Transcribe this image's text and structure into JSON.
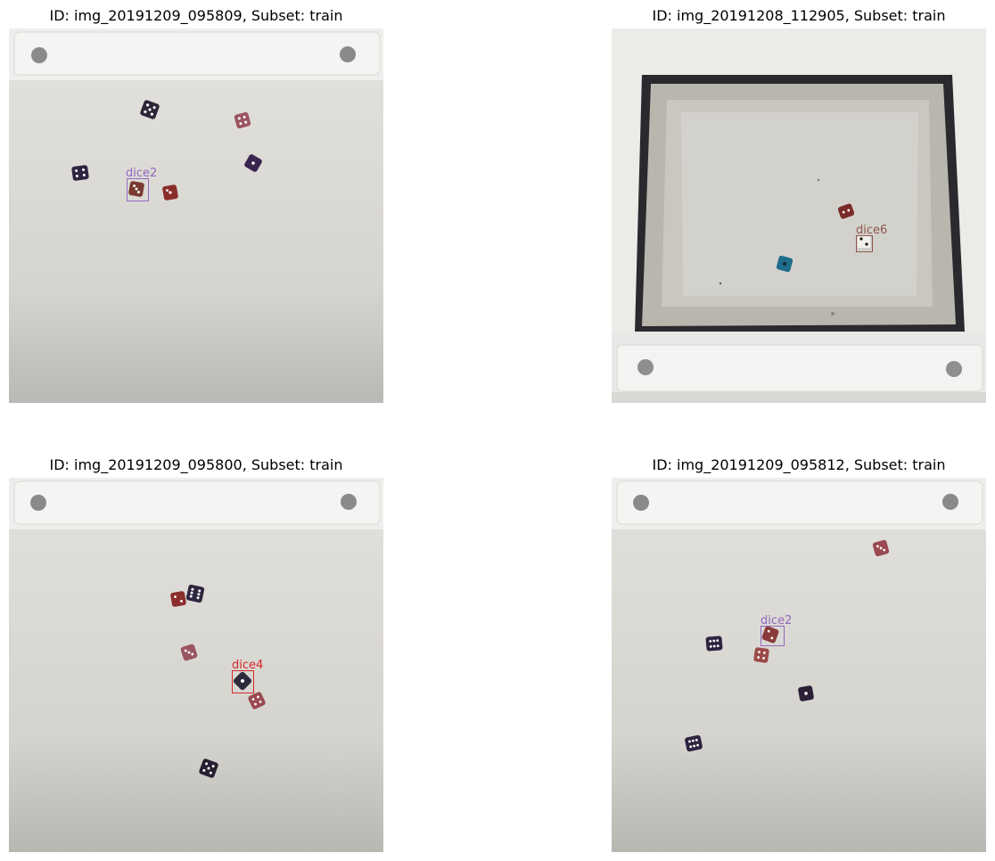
{
  "panels": [
    {
      "title": "ID: img_20191209_095809, Subset: train",
      "annotation": {
        "label": "dice2",
        "color": "#9467bd"
      }
    },
    {
      "title": "ID: img_20191208_112905, Subset: train",
      "annotation": {
        "label": "dice6",
        "color": "#8c564b"
      }
    },
    {
      "title": "ID: img_20191209_095800, Subset: train",
      "annotation": {
        "label": "dice4",
        "color": "#d62728"
      }
    },
    {
      "title": "ID: img_20191209_095812, Subset: train",
      "annotation": {
        "label": "dice2",
        "color": "#9467bd"
      }
    }
  ]
}
